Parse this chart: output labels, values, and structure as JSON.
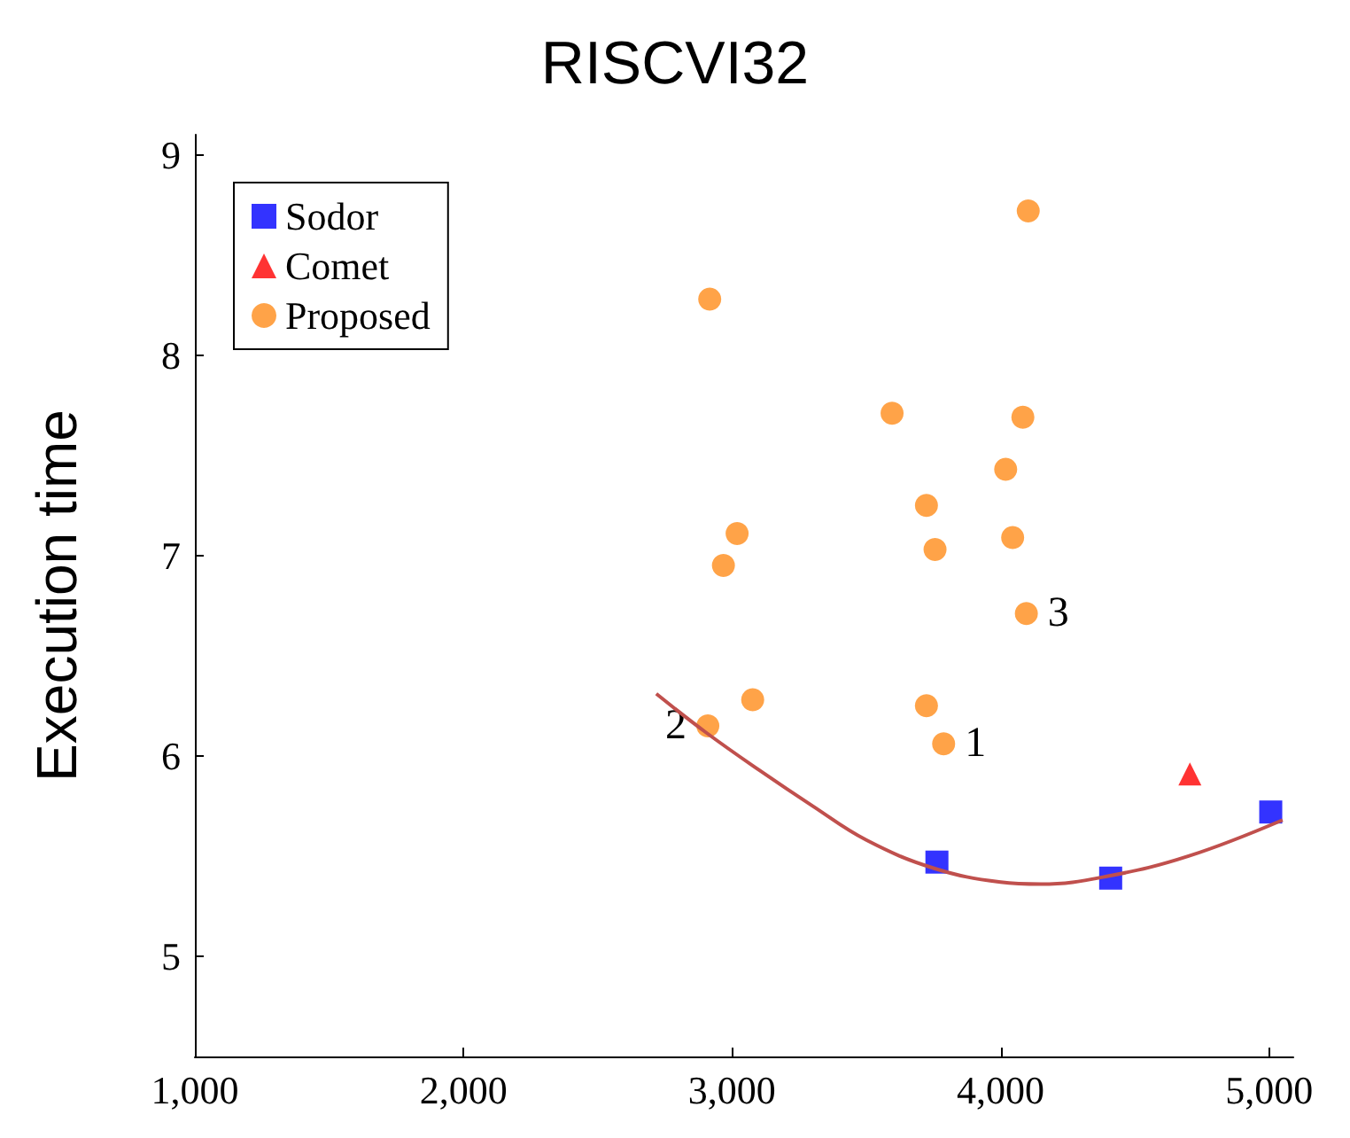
{
  "chart_data": {
    "type": "scatter",
    "title": "RISCVI32",
    "ylabel": "Execution time",
    "xlim": [
      1000,
      5090
    ],
    "xticks": [
      {
        "value": 1000,
        "label": "1,000"
      },
      {
        "value": 2000,
        "label": "2,000"
      },
      {
        "value": 3000,
        "label": "3,000"
      },
      {
        "value": 4000,
        "label": "4,000"
      },
      {
        "value": 5000,
        "label": "5,000"
      }
    ],
    "ylim": [
      4.5,
      9.1
    ],
    "yticks": [
      5,
      6,
      7,
      8,
      9
    ],
    "grid": false,
    "legend": "top left",
    "series": [
      {
        "name": "Sodor",
        "color": "#0000ff",
        "marker": "square",
        "x": [
          3763,
          4410,
          5006
        ],
        "values": [
          5.47,
          5.39,
          5.72
        ]
      },
      {
        "name": "Comet",
        "color": "#ff0000",
        "marker": "triangle",
        "x": [
          4705
        ],
        "values": [
          5.91
        ]
      },
      {
        "name": "Proposed",
        "color": "#ff8c1a",
        "marker": "circle",
        "x": [
          2917,
          4103,
          3596,
          4083,
          4019,
          3724,
          3019,
          4045,
          3756,
          2968,
          4096,
          3724,
          3077,
          2910,
          3788
        ],
        "values": [
          8.28,
          8.72,
          7.71,
          7.69,
          7.43,
          7.25,
          7.11,
          7.09,
          7.03,
          6.95,
          6.71,
          6.25,
          6.28,
          6.15,
          6.06
        ]
      },
      {
        "type": "line",
        "color": "#c0504d",
        "marker": "none",
        "line_style": "solid",
        "x": [
          2718,
          2900,
          3100,
          3300,
          3500,
          3750,
          4000,
          4150,
          4400,
          4700,
          5050
        ],
        "values": [
          6.31,
          6.12,
          5.93,
          5.75,
          5.58,
          5.44,
          5.37,
          5.36,
          5.4,
          5.5,
          5.68
        ]
      }
    ],
    "annotations": [
      {
        "text": "1",
        "x": 3788,
        "y": 6.06
      },
      {
        "text": "2",
        "x": 2910,
        "y": 6.15
      },
      {
        "text": "3",
        "x": 4096,
        "y": 6.71
      }
    ]
  }
}
